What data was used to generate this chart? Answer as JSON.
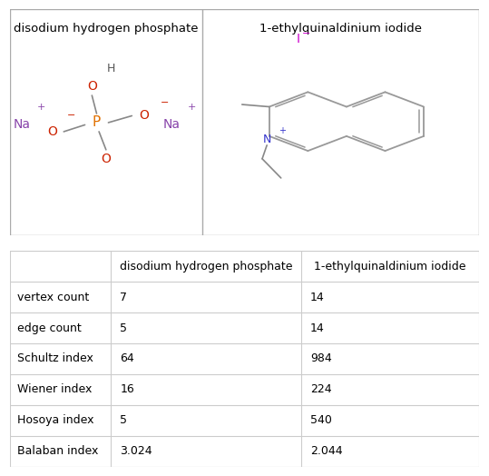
{
  "title_row": [
    "disodium hydrogen phosphate",
    "1-ethylquinaldinium iodide"
  ],
  "row_labels": [
    "vertex count",
    "edge count",
    "Schultz index",
    "Wiener index",
    "Hosoya index",
    "Balaban index"
  ],
  "col1_values": [
    "7",
    "5",
    "64",
    "16",
    "5",
    "3.024"
  ],
  "col2_values": [
    "14",
    "14",
    "984",
    "224",
    "540",
    "2.044"
  ],
  "grid_color": "#cccccc",
  "text_color": "#000000",
  "fig_bg": "#ffffff",
  "font_size": 9.5,
  "border_color": "#aaaaaa",
  "p_color": "#e07000",
  "o_color": "#cc2200",
  "h_color": "#555555",
  "na_color": "#8844aa",
  "n_color": "#3333cc",
  "i_color": "#cc00cc",
  "bond_color": "#888888",
  "ring_color": "#999999"
}
